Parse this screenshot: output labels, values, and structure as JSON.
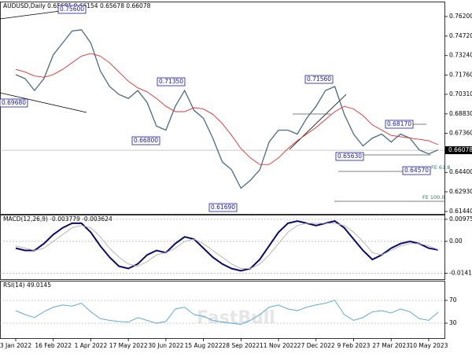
{
  "chart_data": [
    {
      "type": "line",
      "title": "AUDUSD,Daily  0.65681 0.66154 0.65678 0.66078",
      "categories": [
        "3 Jan 2022",
        null,
        null,
        null,
        "16 Feb 2022",
        null,
        null,
        null,
        "1 Apr 2022",
        null,
        null,
        null,
        "17 May 2022",
        null,
        null,
        null,
        "30 Jun 2022",
        null,
        null,
        null,
        "15 Aug 2022",
        null,
        null,
        null,
        "28 Sep 2022",
        null,
        null,
        null,
        "11 Nov 2022",
        null,
        null,
        null,
        "27 Dec 2022",
        null,
        null,
        null,
        "9 Feb 2023",
        null,
        null,
        null,
        "27 Mar 2023",
        null,
        null,
        null,
        "10 May 2023",
        null
      ],
      "series": [
        {
          "color": "#4a6b82",
          "values": [
            0.718,
            0.715,
            0.706,
            0.715,
            0.733,
            0.742,
            0.751,
            0.752,
            0.742,
            0.721,
            0.709,
            0.703,
            0.7,
            0.706,
            0.697,
            0.679,
            0.676,
            0.694,
            0.706,
            0.691,
            0.685,
            0.67,
            0.652,
            0.646,
            0.632,
            0.638,
            0.646,
            0.667,
            0.676,
            0.676,
            0.673,
            0.685,
            0.694,
            0.706,
            0.709,
            0.688,
            0.673,
            0.664,
            0.67,
            0.673,
            0.667,
            0.673,
            0.67,
            0.661,
            0.658,
            0.661
          ]
        },
        {
          "color": "#e03030",
          "values": [
            0.722,
            0.72,
            0.717,
            0.716,
            0.718,
            0.722,
            0.727,
            0.732,
            0.734,
            0.732,
            0.727,
            0.72,
            0.713,
            0.708,
            0.705,
            0.7,
            0.694,
            0.69,
            0.69,
            0.693,
            0.692,
            0.688,
            0.681,
            0.672,
            0.662,
            0.655,
            0.65,
            0.65,
            0.655,
            0.662,
            0.668,
            0.673,
            0.678,
            0.684,
            0.69,
            0.694,
            0.692,
            0.687,
            0.68,
            0.676,
            0.672,
            0.671,
            0.67,
            0.669,
            0.668,
            0.665
          ]
        }
      ],
      "ylim": [
        0.6126,
        0.7733
      ],
      "yticks": [
        {
          "value": 0.762,
          "label": "0.76200"
        },
        {
          "value": 0.7472,
          "label": "0.74720"
        },
        {
          "value": 0.7324,
          "label": "0.73240"
        },
        {
          "value": 0.7176,
          "label": "0.71760"
        },
        {
          "value": 0.7031,
          "label": "0.70310"
        },
        {
          "value": 0.6883,
          "label": "0.68830"
        },
        {
          "value": 0.6736,
          "label": "0.67360"
        },
        {
          "value": 0.644,
          "label": "0.64400"
        },
        {
          "value": 0.6293,
          "label": "0.62930"
        },
        {
          "value": 0.6144,
          "label": "0.61440"
        }
      ],
      "last_price": 0.66078,
      "annotations": [
        "0.75600",
        "0.69680",
        "0.71350",
        "0.66800",
        "0.61690",
        "0.71560",
        "0.68170",
        "0.65630",
        "0.64570"
      ],
      "fe_labels": [
        "FE 100.0",
        "FE 61.8"
      ],
      "watermark": "FastBull"
    },
    {
      "type": "line",
      "title": "MACD(12,26,9) -0.003779 -0.003624",
      "series": [
        {
          "color": "#0a0a6e",
          "values": [
            -0.003,
            -0.004,
            -0.004,
            -0.001,
            0.003,
            0.006,
            0.008,
            0.008,
            0.004,
            -0.002,
            -0.007,
            -0.011,
            -0.012,
            -0.01,
            -0.006,
            -0.004,
            -0.005,
            -0.001,
            0.002,
            0.001,
            -0.003,
            -0.007,
            -0.01,
            -0.012,
            -0.013,
            -0.012,
            -0.008,
            -0.002,
            0.004,
            0.008,
            0.009,
            0.008,
            0.007,
            0.008,
            0.009,
            0.006,
            0.001,
            -0.004,
            -0.008,
            -0.006,
            -0.003,
            -0.001,
            0.0,
            -0.001,
            -0.003,
            -0.003779
          ]
        },
        {
          "color": "#b0b0b0",
          "values": [
            -0.002,
            -0.003,
            -0.004,
            -0.003,
            0.0,
            0.003,
            0.006,
            0.007,
            0.006,
            0.002,
            -0.003,
            -0.007,
            -0.01,
            -0.011,
            -0.009,
            -0.006,
            -0.005,
            -0.003,
            0.0,
            0.001,
            -0.001,
            -0.004,
            -0.007,
            -0.01,
            -0.012,
            -0.012,
            -0.01,
            -0.006,
            -0.001,
            0.004,
            0.007,
            0.008,
            0.008,
            0.008,
            0.008,
            0.007,
            0.004,
            0.0,
            -0.005,
            -0.006,
            -0.004,
            -0.002,
            -0.001,
            -0.001,
            -0.002,
            -0.003624
          ]
        }
      ],
      "ylim": [
        -0.0167,
        0.0118
      ],
      "yticks": [
        {
          "value": 0.009751,
          "label": "0.009751"
        },
        {
          "value": 0,
          "label": "0.00"
        },
        {
          "value": -0.014107,
          "label": "-0.014107"
        }
      ]
    },
    {
      "type": "line",
      "title": "RSI(14) 49.0145",
      "series": [
        {
          "color": "#4aa0d8",
          "values": [
            52,
            45,
            40,
            50,
            58,
            62,
            60,
            65,
            50,
            38,
            35,
            33,
            32,
            40,
            35,
            30,
            33,
            55,
            58,
            45,
            42,
            35,
            32,
            30,
            28,
            35,
            45,
            58,
            62,
            55,
            52,
            58,
            62,
            65,
            70,
            45,
            35,
            40,
            50,
            52,
            48,
            55,
            50,
            38,
            35,
            49.0145
          ]
        }
      ],
      "ylim": [
        3.8,
        104.5
      ],
      "yticks": [
        70,
        30
      ]
    }
  ]
}
